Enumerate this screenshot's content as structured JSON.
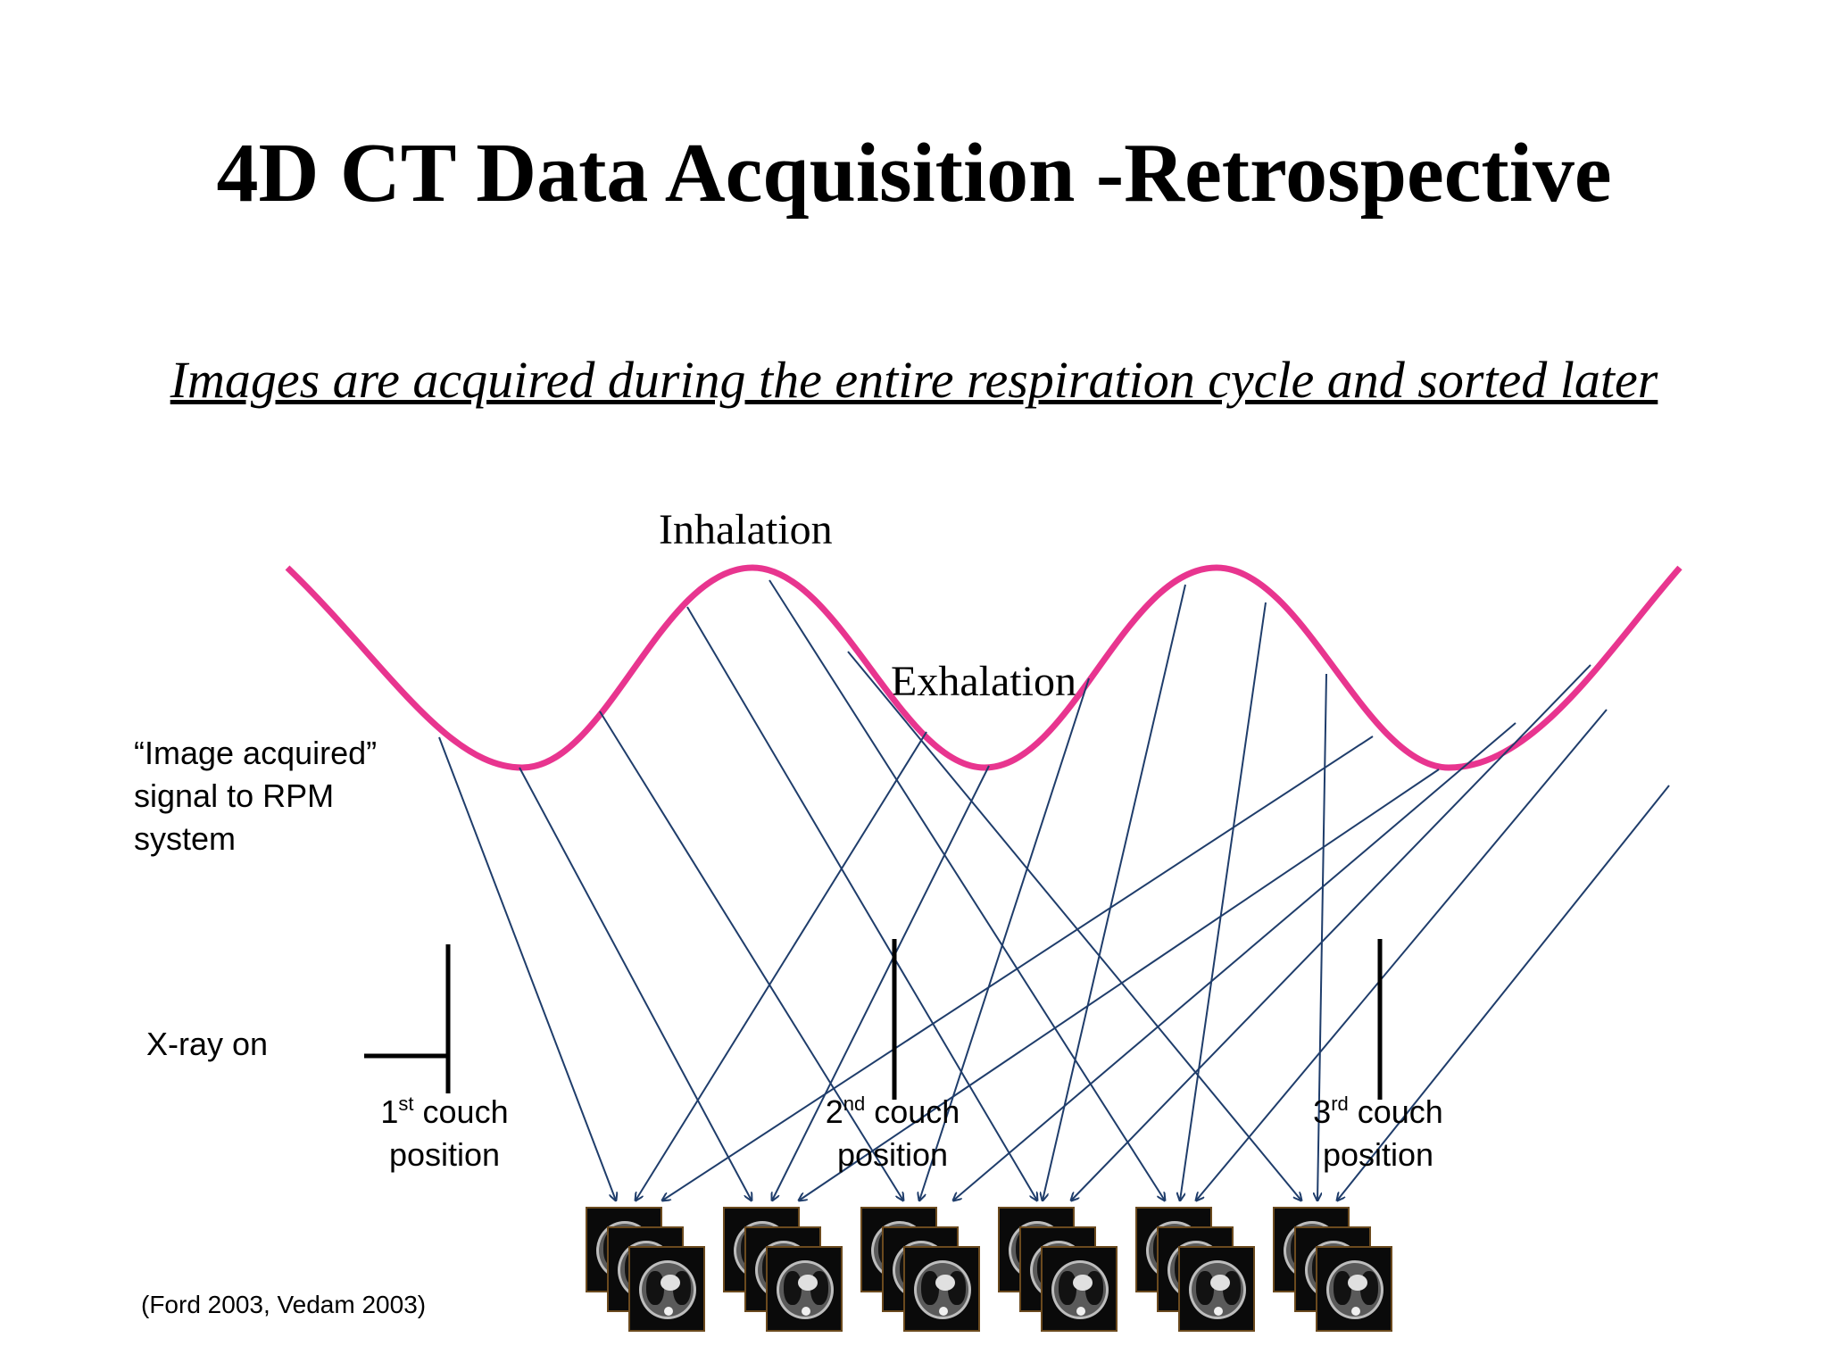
{
  "title": "4D CT Data Acquisition -Retrospective",
  "subtitle": "Images are acquired during the entire respiration cycle and sorted later",
  "labels": {
    "inhalation": "Inhalation",
    "exhalation": "Exhalation",
    "image_acquired": "“Image acquired” signal to RPM system",
    "xray_on": "X-ray on"
  },
  "couch_positions": [
    {
      "ordinal": "1",
      "suffix": "st",
      "text": " couch",
      "line2": "position"
    },
    {
      "ordinal": "2",
      "suffix": "nd",
      "text": " couch",
      "line2": "position"
    },
    {
      "ordinal": "3",
      "suffix": "rd",
      "text": " couch",
      "line2": "position"
    }
  ],
  "citation": "(Ford 2003, Vedam 2003)",
  "colors": {
    "breathing_curve": "#e8358f",
    "arrows": "#1f3d6b",
    "xray_lines": "#000000"
  },
  "image_stacks": {
    "count": 6,
    "slices_per_stack": 3
  }
}
